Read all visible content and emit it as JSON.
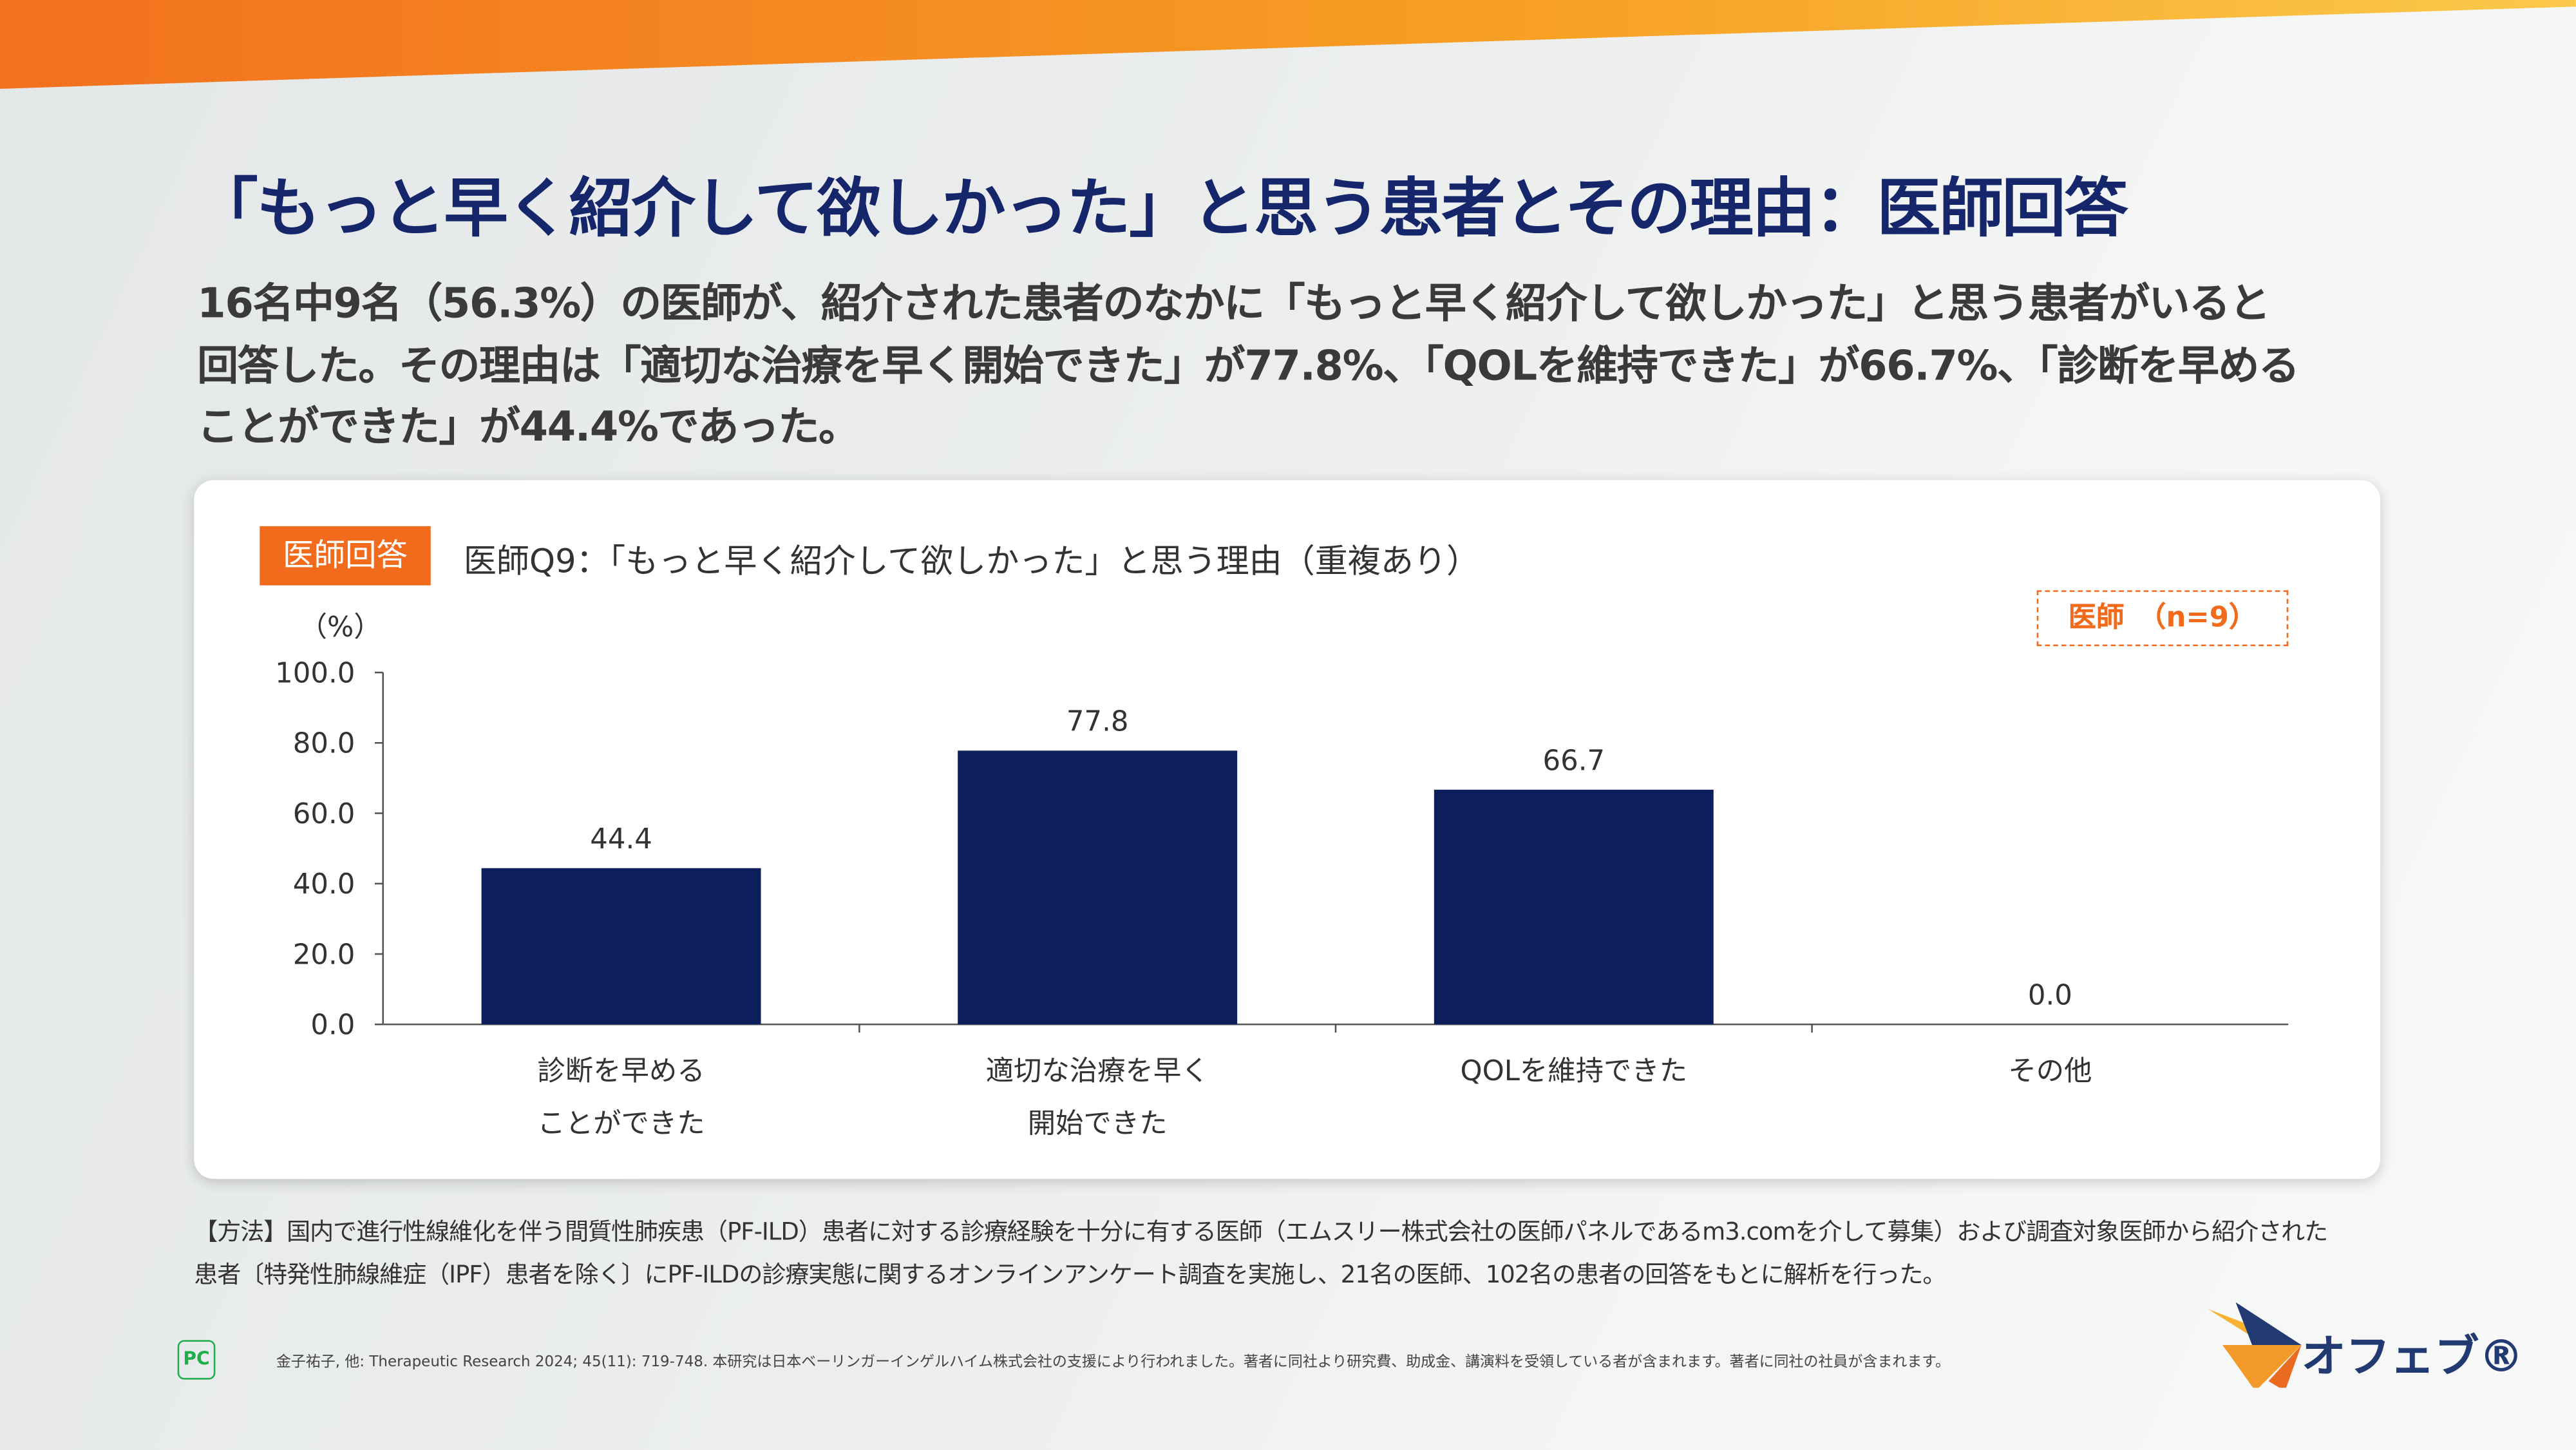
{
  "header": {
    "title": "「もっと早く紹介して欲しかった」と思う患者とその理由：医師回答",
    "summary_lines": [
      "16名中9名（56.3%）の医師が、紹介された患者のなかに「もっと早く紹介して欲しかった」と思う患者がいると",
      "回答した。その理由は「適切な治療を早く開始できた」が77.8%、「QOLを維持できた」が66.7%、「診断を早める",
      "ことができた」が44.4%であった。"
    ]
  },
  "card": {
    "badge": "医師回答",
    "n_label": "医師　（n=9）"
  },
  "chart_data": {
    "type": "bar",
    "title": "医師Q9：「もっと早く紹介して欲しかった」と思う理由（重複あり）",
    "ylabel": "（%）",
    "ylim": [
      0,
      100
    ],
    "yticks": [
      "100.0",
      "80.0",
      "60.0",
      "40.0",
      "20.0",
      "0.0"
    ],
    "categories": [
      [
        "診断を早める",
        "ことができた"
      ],
      [
        "適切な治療を早く",
        "開始できた"
      ],
      [
        "QOLを維持できた"
      ],
      [
        "その他"
      ]
    ],
    "values": [
      44.4,
      77.8,
      66.7,
      0.0
    ],
    "value_labels": [
      "44.4",
      "77.8",
      "66.7",
      "0.0"
    ],
    "bar_color": "#0c1f5a"
  },
  "method": [
    "【方法】国内で進行性線維化を伴う間質性肺疾患（PF-ILD）患者に対する診療経験を十分に有する医師（エムスリー株式会社の医師パネルであるm3.comを介して募集）および調査対象医師から紹介された",
    "患者〔特発性肺線維症（IPF）患者を除く〕にPF-ILDの診療実態に関するオンラインアンケート調査を実施し、21名の医師、102名の患者の回答をもとに解析を行った。"
  ],
  "footnote": "金子祐子, 他: Therapeutic Research 2024; 45(11): 719-748.  本研究は日本ベーリンガーインゲルハイム株式会社の支援により行われました。著者に同社より研究費、助成金、講演料を受領している者が含まれます。著者に同社の社員が含まれます。",
  "pc_icon": "PC",
  "logo": "オフェブ®",
  "colors": {
    "accent": "#f26b1d",
    "navy": "#15266b"
  }
}
